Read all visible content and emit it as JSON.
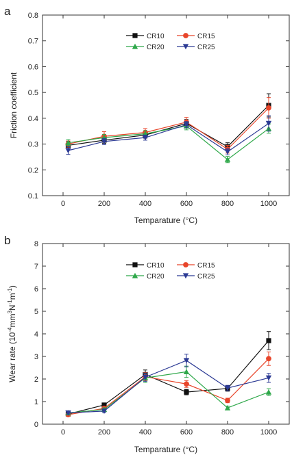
{
  "colors": {
    "CR10": "#111111",
    "CR15": "#e8452a",
    "CR20": "#2fa84a",
    "CR25": "#2c3a94",
    "axis": "#333333"
  },
  "chart_data": [
    {
      "panel_label": "a",
      "type": "line",
      "xlabel": "Temparature (°C)",
      "ylabel": "Friction coefficient",
      "x": [
        25,
        200,
        400,
        600,
        800,
        1000
      ],
      "x_tick_labels": [
        "0",
        "200",
        "400",
        "600",
        "800",
        "1000"
      ],
      "xlim": [
        -100,
        1100
      ],
      "ylim": [
        0.1,
        0.8
      ],
      "y_ticks": [
        0.1,
        0.2,
        0.3,
        0.4,
        0.5,
        0.6,
        0.7,
        0.8
      ],
      "y_tick_labels": [
        "0.1",
        "0.2",
        "0.3",
        "0.4",
        "0.5",
        "0.6",
        "0.7",
        "0.8"
      ],
      "legend_position": "top-center",
      "series": [
        {
          "name": "CR10",
          "marker": "square",
          "color": "#111111",
          "values": [
            0.295,
            0.315,
            0.335,
            0.38,
            0.29,
            0.45
          ],
          "errors": [
            0.015,
            0.012,
            0.012,
            0.015,
            0.015,
            0.045
          ]
        },
        {
          "name": "CR15",
          "marker": "circle",
          "color": "#e8452a",
          "values": [
            0.3,
            0.33,
            0.345,
            0.385,
            0.28,
            0.44
          ],
          "errors": [
            0.012,
            0.018,
            0.015,
            0.018,
            0.015,
            0.04
          ]
        },
        {
          "name": "CR20",
          "marker": "triangle-up",
          "color": "#2fa84a",
          "values": [
            0.305,
            0.325,
            0.34,
            0.37,
            0.24,
            0.36
          ],
          "errors": [
            0.012,
            0.012,
            0.012,
            0.015,
            0.012,
            0.018
          ]
        },
        {
          "name": "CR25",
          "marker": "triangle-down",
          "color": "#2c3a94",
          "values": [
            0.275,
            0.31,
            0.325,
            0.375,
            0.27,
            0.38
          ],
          "errors": [
            0.015,
            0.012,
            0.01,
            0.012,
            0.012,
            0.03
          ]
        }
      ]
    },
    {
      "panel_label": "b",
      "type": "line",
      "xlabel": "Temparature (°C)",
      "ylabel_parts": [
        "Wear rate (10",
        "-4",
        "mm",
        "3",
        "N",
        "-1",
        "m",
        "-1",
        ")"
      ],
      "x": [
        25,
        200,
        400,
        600,
        800,
        1000
      ],
      "x_tick_labels": [
        "0",
        "200",
        "400",
        "600",
        "800",
        "1000"
      ],
      "xlim": [
        -100,
        1100
      ],
      "ylim": [
        0,
        8
      ],
      "y_ticks": [
        0,
        1,
        2,
        3,
        4,
        5,
        6,
        7,
        8
      ],
      "y_tick_labels": [
        "0",
        "1",
        "2",
        "3",
        "4",
        "5",
        "6",
        "7",
        "8"
      ],
      "legend_position": "top-center",
      "series": [
        {
          "name": "CR10",
          "marker": "square",
          "color": "#111111",
          "values": [
            0.45,
            0.85,
            2.2,
            1.42,
            1.58,
            3.7
          ],
          "errors": [
            0.05,
            0.08,
            0.2,
            0.12,
            0.12,
            0.4
          ]
        },
        {
          "name": "CR15",
          "marker": "circle",
          "color": "#e8452a",
          "values": [
            0.42,
            0.7,
            2.1,
            1.78,
            1.05,
            2.9
          ],
          "errors": [
            0.05,
            0.08,
            0.18,
            0.15,
            0.1,
            0.3
          ]
        },
        {
          "name": "CR20",
          "marker": "triangle-up",
          "color": "#2fa84a",
          "values": [
            0.5,
            0.65,
            2.05,
            2.32,
            0.72,
            1.42
          ],
          "errors": [
            0.05,
            0.07,
            0.2,
            0.25,
            0.08,
            0.15
          ]
        },
        {
          "name": "CR25",
          "marker": "triangle-down",
          "color": "#2c3a94",
          "values": [
            0.5,
            0.58,
            2.08,
            2.82,
            1.6,
            2.05
          ],
          "errors": [
            0.05,
            0.07,
            0.18,
            0.28,
            0.12,
            0.2
          ]
        }
      ]
    }
  ]
}
